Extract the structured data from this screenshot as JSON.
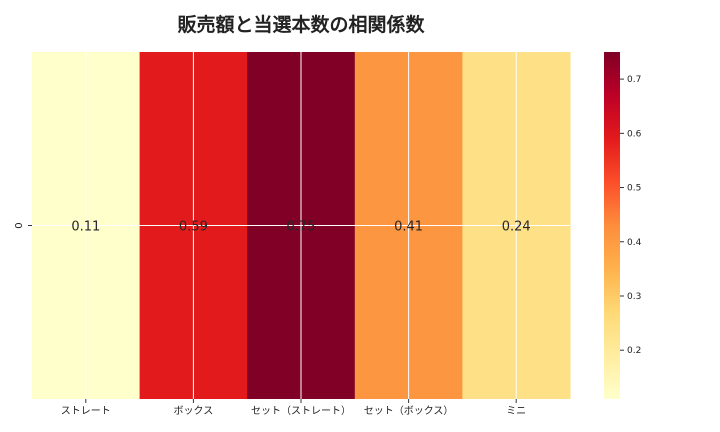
{
  "chart_data": {
    "type": "heatmap",
    "title": "販売額と当選本数の相関係数",
    "x_categories": [
      "ストレート",
      "ボックス",
      "セット（ストレート）",
      "セット（ボックス）",
      "ミニ"
    ],
    "y_categories": [
      "0"
    ],
    "values": [
      [
        0.11,
        0.59,
        0.75,
        0.41,
        0.24
      ]
    ],
    "value_labels": [
      "0.11",
      "0.59",
      "0.75",
      "0.41",
      "0.24"
    ],
    "colorbar": {
      "ticks": [
        0.2,
        0.3,
        0.4,
        0.5,
        0.6,
        0.7
      ],
      "tick_labels": [
        "0.2",
        "0.3",
        "0.4",
        "0.5",
        "0.6",
        "0.7"
      ],
      "vmin": 0.11,
      "vmax": 0.75,
      "colormap": "YlOrRd",
      "colors": [
        "#ffffcc",
        "#ffeda0",
        "#fed976",
        "#feb24c",
        "#fd8d3c",
        "#fc4e2a",
        "#e31a1c",
        "#bd0026",
        "#800026"
      ]
    },
    "grid": true
  }
}
